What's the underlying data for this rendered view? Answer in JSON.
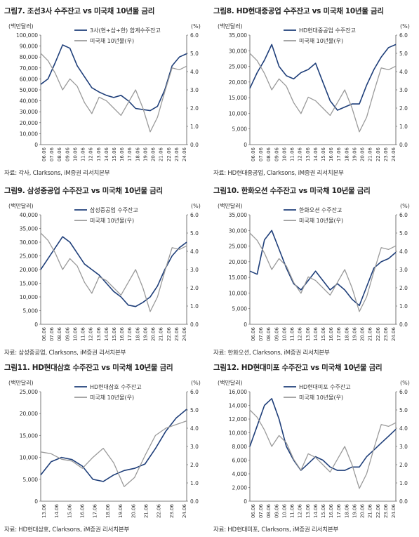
{
  "chart_data": [
    {
      "type": "line",
      "figure_label": "그림7.",
      "title": "조선3사 수주잔고 vs 미국채 10년물 금리",
      "left_unit": "(백만달러)",
      "right_unit": "(%)",
      "ylim_left": [
        0,
        100000
      ],
      "ylim_right": [
        0.0,
        6.0
      ],
      "yticks_left": [
        "100,000",
        "90,000",
        "80,000",
        "70,000",
        "60,000",
        "50,000",
        "40,000",
        "30,000",
        "20,000",
        "10,000",
        "0"
      ],
      "yticks_right": [
        "6.0",
        "5.0",
        "4.0",
        "3.0",
        "2.0",
        "1.0",
        "0.0"
      ],
      "x_labels": [
        "06.06",
        "07.06",
        "08.06",
        "09.06",
        "10.06",
        "11.06",
        "12.06",
        "13.06",
        "14.06",
        "15.06",
        "16.06",
        "17.06",
        "18.06",
        "19.06",
        "20.06",
        "21.06",
        "22.06",
        "23.06",
        "24.06"
      ],
      "series": [
        {
          "name": "3사(현+삼+한) 합계수주잔고",
          "axis": "left",
          "color": "#1f3f7a",
          "values": [
            55000,
            60000,
            75000,
            91000,
            88000,
            72000,
            62000,
            52000,
            48000,
            45000,
            43000,
            45000,
            40000,
            33000,
            32000,
            31000,
            35000,
            50000,
            72000,
            80000,
            83000
          ]
        },
        {
          "name": "미국채 10년물(우)",
          "axis": "right",
          "color": "#9a9a9a",
          "values": [
            5.0,
            4.6,
            3.9,
            3.0,
            3.6,
            3.2,
            2.3,
            1.7,
            2.6,
            2.4,
            2.0,
            1.6,
            2.3,
            3.0,
            2.0,
            0.7,
            1.5,
            2.9,
            4.2,
            4.1,
            4.3
          ]
        }
      ],
      "source": "자료: 각사, Clarksons, iM증권 리서치본부"
    },
    {
      "type": "line",
      "figure_label": "그림8.",
      "title": "HD현대중공업 수주잔고 vs 미국채 10년물 금리",
      "left_unit": "(백만달러)",
      "right_unit": "(%)",
      "ylim_left": [
        0,
        35000
      ],
      "ylim_right": [
        0.0,
        6.0
      ],
      "yticks_left": [
        "35,000",
        "30,000",
        "25,000",
        "20,000",
        "15,000",
        "10,000",
        "5,000",
        "0"
      ],
      "yticks_right": [
        "6.0",
        "5.0",
        "4.0",
        "3.0",
        "2.0",
        "1.0",
        "0.0"
      ],
      "x_labels": [
        "06.06",
        "07.06",
        "08.06",
        "09.06",
        "10.06",
        "11.06",
        "12.06",
        "13.06",
        "14.06",
        "15.06",
        "16.06",
        "17.06",
        "18.06",
        "19.06",
        "20.06",
        "21.06",
        "22.06",
        "23.06",
        "24.06"
      ],
      "series": [
        {
          "name": "HD현대중공업 수주잔고",
          "axis": "left",
          "color": "#1f3f7a",
          "values": [
            18000,
            23000,
            27000,
            32000,
            25000,
            22000,
            21000,
            23000,
            24000,
            26000,
            20000,
            14000,
            11000,
            12000,
            13000,
            13000,
            19000,
            24000,
            28000,
            31000,
            32000
          ]
        },
        {
          "name": "미국채 10년물(우)",
          "axis": "right",
          "color": "#9a9a9a",
          "values": [
            5.0,
            4.6,
            3.9,
            3.0,
            3.6,
            3.2,
            2.3,
            1.7,
            2.6,
            2.4,
            2.0,
            1.6,
            2.3,
            3.0,
            2.0,
            0.7,
            1.5,
            2.9,
            4.2,
            4.1,
            4.3
          ]
        }
      ],
      "source": "자료: HD현대중공업, Clarksons, iM증권 리서치본부"
    },
    {
      "type": "line",
      "figure_label": "그림9.",
      "title": "삼성중공업 수주잔고 vs 미국채 10년물 금리",
      "left_unit": "(백만달러)",
      "right_unit": "(%)",
      "ylim_left": [
        0,
        40000
      ],
      "ylim_right": [
        0.0,
        6.0
      ],
      "yticks_left": [
        "40,000",
        "35,000",
        "30,000",
        "25,000",
        "20,000",
        "15,000",
        "10,000",
        "5,000",
        "0"
      ],
      "yticks_right": [
        "6.0",
        "5.0",
        "4.0",
        "3.0",
        "2.0",
        "1.0",
        "0.0"
      ],
      "x_labels": [
        "06.06",
        "07.06",
        "08.06",
        "09.06",
        "10.06",
        "11.06",
        "12.06",
        "13.06",
        "14.06",
        "15.06",
        "16.06",
        "17.06",
        "18.06",
        "19.06",
        "20.06",
        "21.06",
        "22.06",
        "23.06",
        "24.06"
      ],
      "series": [
        {
          "name": "삼성중공업 수주잔고",
          "axis": "left",
          "color": "#1f3f7a",
          "values": [
            20000,
            24000,
            28000,
            32000,
            30000,
            26000,
            22000,
            20000,
            18000,
            15000,
            12000,
            10000,
            7000,
            6500,
            8000,
            10000,
            14000,
            20000,
            25000,
            28000,
            30000
          ]
        },
        {
          "name": "미국채 10년물(우)",
          "axis": "right",
          "color": "#9a9a9a",
          "values": [
            5.0,
            4.6,
            3.9,
            3.0,
            3.6,
            3.2,
            2.3,
            1.7,
            2.6,
            2.4,
            2.0,
            1.6,
            2.3,
            3.0,
            2.0,
            0.7,
            1.5,
            2.9,
            4.2,
            4.1,
            4.3
          ]
        }
      ],
      "source": "자료: 삼성중공업, Clarksons, iM증권 리서치본부"
    },
    {
      "type": "line",
      "figure_label": "그림10.",
      "title": "한화오션 수주잔고 vs 미국채 10년물 금리",
      "left_unit": "(백만달러)",
      "right_unit": "(%)",
      "ylim_left": [
        0,
        35000
      ],
      "ylim_right": [
        0.0,
        6.0
      ],
      "yticks_left": [
        "35,000",
        "30,000",
        "25,000",
        "20,000",
        "15,000",
        "10,000",
        "5,000",
        "0"
      ],
      "yticks_right": [
        "6.0",
        "5.0",
        "4.0",
        "3.0",
        "2.0",
        "1.0",
        "0.0"
      ],
      "x_labels": [
        "06.06",
        "07.06",
        "08.06",
        "09.06",
        "10.06",
        "11.06",
        "12.06",
        "13.06",
        "14.06",
        "15.06",
        "16.06",
        "17.06",
        "18.06",
        "19.06",
        "20.06",
        "21.06",
        "22.06",
        "23.06",
        "24.06"
      ],
      "series": [
        {
          "name": "한화오션 수주잔고",
          "axis": "left",
          "color": "#1f3f7a",
          "values": [
            17000,
            16000,
            27000,
            30000,
            24000,
            18000,
            13000,
            11000,
            14000,
            17000,
            14000,
            11000,
            13000,
            11000,
            8000,
            6000,
            12000,
            18000,
            20000,
            21000,
            23000
          ]
        },
        {
          "name": "미국채 10년물(우)",
          "axis": "right",
          "color": "#9a9a9a",
          "values": [
            5.0,
            4.6,
            3.9,
            3.0,
            3.6,
            3.2,
            2.3,
            1.7,
            2.6,
            2.4,
            2.0,
            1.6,
            2.3,
            3.0,
            2.0,
            0.7,
            1.5,
            2.9,
            4.2,
            4.1,
            4.3
          ]
        }
      ],
      "source": "자료: 한화오션, Clarksons, iM증권 리서치본부"
    },
    {
      "type": "line",
      "figure_label": "그림11.",
      "title": "HD현대삼호 수주잔고 vs 미국채 10년물 금리",
      "left_unit": "(백만달러)",
      "right_unit": "(%)",
      "ylim_left": [
        0,
        25000
      ],
      "ylim_right": [
        0.0,
        6.0
      ],
      "yticks_left": [
        "25,000",
        "20,000",
        "15,000",
        "10,000",
        "5,000",
        "0"
      ],
      "yticks_right": [
        "6.0",
        "5.0",
        "4.0",
        "3.0",
        "2.0",
        "1.0",
        "0.0"
      ],
      "x_labels": [
        "13.06",
        "14.06",
        "15.06",
        "16.06",
        "17.06",
        "18.06",
        "19.06",
        "20.06",
        "21.06",
        "22.06",
        "23.06",
        "24.06"
      ],
      "series": [
        {
          "name": "HD현대삼호 수주잔고",
          "axis": "left",
          "color": "#1f3f7a",
          "values": [
            6000,
            9000,
            10000,
            9500,
            8000,
            5000,
            4500,
            6000,
            7000,
            7500,
            8500,
            12000,
            16000,
            19000,
            21000
          ]
        },
        {
          "name": "미국채 10년물(우)",
          "axis": "right",
          "color": "#9a9a9a",
          "values": [
            2.7,
            2.6,
            2.3,
            2.2,
            1.8,
            2.4,
            2.9,
            2.1,
            0.8,
            1.3,
            2.5,
            3.6,
            4.0,
            4.2,
            4.4
          ]
        }
      ],
      "source": "자료: HD현대삼호, Clarksons, iM증권 리서치본부"
    },
    {
      "type": "line",
      "figure_label": "그림12.",
      "title": "HD현대미포 수주잔고 vs 미국채 10년물 금리",
      "left_unit": "(백만달러)",
      "right_unit": "(%)",
      "ylim_left": [
        0,
        16000
      ],
      "ylim_right": [
        0.0,
        6.0
      ],
      "yticks_left": [
        "16,000",
        "14,000",
        "12,000",
        "10,000",
        "8,000",
        "6,000",
        "4,000",
        "2,000",
        "0"
      ],
      "yticks_right": [
        "6.0",
        "5.0",
        "4.0",
        "3.0",
        "2.0",
        "1.0",
        "0.0"
      ],
      "x_labels": [
        "06.06",
        "07.06",
        "08.06",
        "09.06",
        "10.06",
        "11.06",
        "12.06",
        "13.06",
        "14.06",
        "15.06",
        "16.06",
        "17.06",
        "18.06",
        "19.06",
        "20.06",
        "21.06",
        "22.06",
        "23.06",
        "24.06"
      ],
      "series": [
        {
          "name": "HD현대미포 수주잔고",
          "axis": "left",
          "color": "#1f3f7a",
          "values": [
            8000,
            11000,
            14000,
            15000,
            12000,
            8000,
            6000,
            4500,
            5500,
            6500,
            6000,
            5000,
            4500,
            4500,
            5000,
            5000,
            6500,
            7500,
            8500,
            9500,
            10500
          ]
        },
        {
          "name": "미국채 10년물(우)",
          "axis": "right",
          "color": "#9a9a9a",
          "values": [
            5.0,
            4.6,
            3.9,
            3.0,
            3.6,
            3.2,
            2.3,
            1.7,
            2.6,
            2.4,
            2.0,
            1.6,
            2.3,
            3.0,
            2.0,
            0.7,
            1.5,
            2.9,
            4.2,
            4.1,
            4.3
          ]
        }
      ],
      "source": "자료: HD현대미포, Clarksons, iM증권 리서치본부"
    }
  ]
}
